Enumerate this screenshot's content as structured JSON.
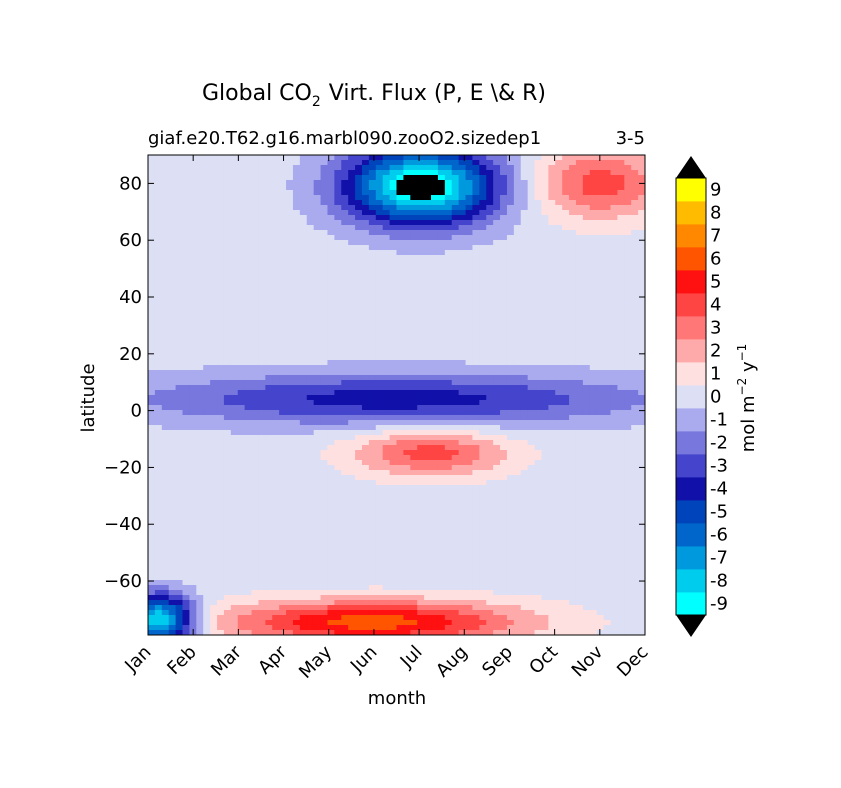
{
  "chart_data": {
    "type": "heatmap",
    "title_prefix": "Global CO",
    "title_subscript": "2",
    "title_suffix": "Virt. Flux (P, E \\& R)",
    "subtitle_left": "giaf.e20.T62.g16.marbl090.zooO2.sizedep1",
    "subtitle_right": "3-5",
    "xlabel": "month",
    "ylabel": "latitude",
    "x_ticks": [
      "Jan",
      "Feb",
      "Mar",
      "Apr",
      "May",
      "Jun",
      "Jul",
      "Aug",
      "Sep",
      "Oct",
      "Nov",
      "Dec"
    ],
    "xlim": [
      1,
      12
    ],
    "ylim": [
      -79,
      90
    ],
    "y_ticks": [
      -60,
      -40,
      -20,
      0,
      20,
      40,
      60,
      80
    ],
    "colorbar": {
      "label_text": "mol m",
      "label_exp1": "−2",
      "label_mid": " y",
      "label_exp2": "−1",
      "levels": [
        -9,
        -8,
        -7,
        -6,
        -5,
        -4,
        -3,
        -2,
        -1,
        0,
        1,
        2,
        3,
        4,
        5,
        6,
        7,
        8,
        9
      ],
      "tick_labels": [
        "-9",
        "-8",
        "-7",
        "-6",
        "-5",
        "-4",
        "-3",
        "-2",
        "-1",
        "0",
        "1",
        "2",
        "3",
        "4",
        "5",
        "6",
        "7",
        "8",
        "9"
      ],
      "colors": [
        "#00ffff",
        "#00ccee",
        "#0099dd",
        "#0066cc",
        "#0044bb",
        "#1111aa",
        "#4444cc",
        "#7777dd",
        "#aaaaee",
        "#dddff4",
        "#ffe0e0",
        "#ffaaaa",
        "#ff7777",
        "#ff4444",
        "#ff1111",
        "#ff5500",
        "#ff8800",
        "#ffbb00",
        "#ffff00"
      ],
      "under_color": "#000000",
      "over_color": "#000000"
    },
    "features": [
      {
        "name": "arctic summer minimum",
        "month": [
          5.8,
          8.3
        ],
        "lat": [
          68,
          90
        ],
        "value": -10
      },
      {
        "name": "arctic winter maximum",
        "month": [
          10,
          12
        ],
        "lat": [
          70,
          90
        ],
        "value": 4
      },
      {
        "name": "southern subtropics positive",
        "month": [
          6,
          8.5
        ],
        "lat": [
          -20,
          -10
        ],
        "value": 4
      },
      {
        "name": "equatorial negative band",
        "month": [
          1,
          12
        ],
        "lat": [
          -2,
          10
        ],
        "value": -4
      },
      {
        "name": "antarctic margin summer maximum",
        "month": [
          3,
          9
        ],
        "lat": [
          -79,
          -70
        ],
        "value": 6
      },
      {
        "name": "antarctic margin winter minimum",
        "month": [
          1,
          1.5
        ],
        "lat": [
          -79,
          -68
        ],
        "value": -9
      }
    ]
  }
}
